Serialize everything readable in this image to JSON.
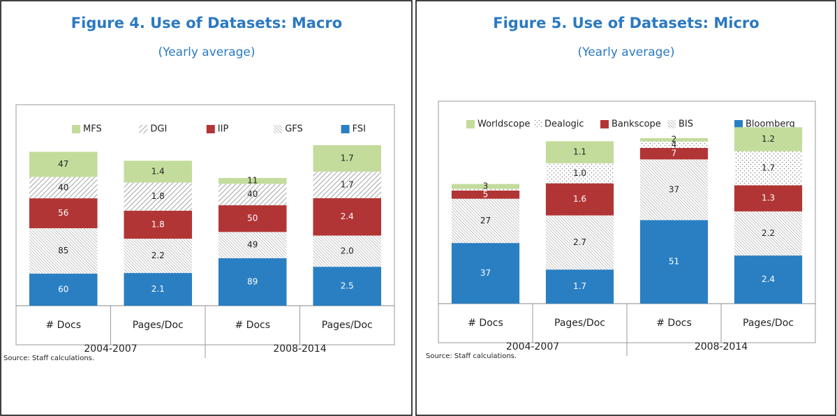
{
  "chart_data": [
    {
      "type": "bar",
      "stacked": true,
      "title": "Figure 4. Use of Datasets: Macro",
      "subtitle": "(Yearly average)",
      "categories": [
        "# Docs",
        "Pages/Doc",
        "# Docs",
        "Pages/Doc"
      ],
      "category_axis": [
        "y",
        "y2",
        "y",
        "y2"
      ],
      "groups": [
        "2004-2007",
        "2008-2014"
      ],
      "ylim": [
        0,
        350
      ],
      "y2lim": [
        0,
        12
      ],
      "series": [
        {
          "name": "FSI",
          "color": "#2a7fc2",
          "values": [
            60,
            2.1,
            89,
            2.5
          ]
        },
        {
          "name": "GFS",
          "color": "#8c8c8c",
          "pattern": "dense",
          "values": [
            85,
            2.2,
            49,
            2.0
          ],
          "value_labels": [
            "85",
            "2.2",
            "49",
            "2.0"
          ]
        },
        {
          "name": "IIP",
          "color": "#b23535",
          "values": [
            56,
            1.8,
            50,
            2.4
          ]
        },
        {
          "name": "DGI",
          "color": "#8c8c8c",
          "pattern": "diagonal",
          "values": [
            40,
            1.8,
            40,
            1.7
          ]
        },
        {
          "name": "MFS",
          "color": "#c3dc9c",
          "values": [
            47,
            1.4,
            11,
            1.7
          ]
        }
      ],
      "note": "Source: Staff calculations."
    },
    {
      "type": "bar",
      "stacked": true,
      "title": "Figure 5. Use of Datasets: Micro",
      "subtitle": "(Yearly average)",
      "categories": [
        "# Docs",
        "Pages/Doc",
        "# Docs",
        "Pages/Doc"
      ],
      "category_axis": [
        "y",
        "y2",
        "y",
        "y2"
      ],
      "groups": [
        "2004-2007",
        "2008-2014"
      ],
      "ylim": [
        0,
        115
      ],
      "y2lim": [
        0,
        9.4
      ],
      "series": [
        {
          "name": "Bloomberg",
          "color": "#2a7fc2",
          "values": [
            37,
            1.7,
            51,
            2.4
          ]
        },
        {
          "name": "BIS",
          "color": "#8c8c8c",
          "pattern": "dense",
          "values": [
            27,
            2.7,
            37,
            2.2
          ]
        },
        {
          "name": "Bankscope",
          "color": "#b23535",
          "values": [
            5,
            1.6,
            7,
            1.3
          ]
        },
        {
          "name": "Dealogic",
          "color": "#8c8c8c",
          "pattern": "dots",
          "values": [
            1,
            1.0,
            4,
            1.7
          ],
          "value_labels": [
            null,
            "1.0",
            "4",
            "1.7"
          ]
        },
        {
          "name": "Worldscope",
          "color": "#c3dc9c",
          "values": [
            3,
            1.1,
            2,
            1.2
          ]
        }
      ],
      "note": "Source: Staff calculations."
    }
  ]
}
